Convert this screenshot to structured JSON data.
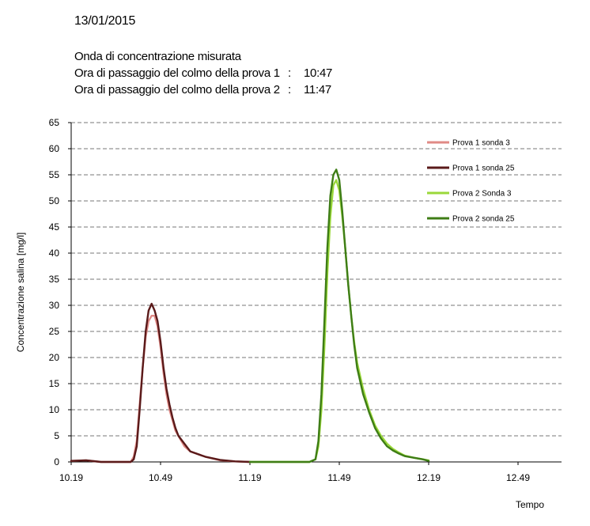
{
  "header": {
    "date": "13/01/2015",
    "subtitle": "Onda di concentrazione misurata",
    "peak1_label": "Ora di passaggio del colmo della prova 1",
    "peak1_sep": ":",
    "peak1_time": "10:47",
    "peak2_label": "Ora di passaggio del colmo della prova 2",
    "peak2_sep": ":",
    "peak2_time": "11:47"
  },
  "chart_data": {
    "type": "line",
    "xlabel": "Tempo",
    "ylabel": "Concentrazione salina [mg/l]",
    "x_ticks": [
      "10.19",
      "10.49",
      "11.19",
      "11.49",
      "12.19",
      "12.49"
    ],
    "y_ticks": [
      0,
      5,
      10,
      15,
      20,
      25,
      30,
      35,
      40,
      45,
      50,
      55,
      60,
      65
    ],
    "xlim": [
      0,
      150
    ],
    "ylim": [
      0,
      65
    ],
    "grid": "horizontal dashed",
    "legend_position": "top-right",
    "series": [
      {
        "name": "Prova 1  sonda 3",
        "color": "#e08a86",
        "x": [
          0,
          5,
          10,
          15,
          20,
          21,
          22,
          23,
          24,
          25,
          26,
          27,
          28,
          29,
          30,
          31,
          32,
          33,
          34,
          35,
          36,
          38,
          40,
          45,
          50,
          55,
          60
        ],
        "y": [
          0.2,
          0.3,
          0,
          0,
          0,
          1,
          4,
          11,
          18,
          24,
          27,
          28,
          28,
          26,
          22,
          17,
          13,
          10,
          8,
          6,
          5,
          3,
          2,
          1,
          0.3,
          0.1,
          0
        ]
      },
      {
        "name": "Prova 1  sonda 25",
        "color": "#5a1a1a",
        "x": [
          0,
          5,
          10,
          15,
          20,
          21,
          22,
          23,
          24,
          25,
          26,
          27,
          28,
          29,
          30,
          31,
          32,
          33,
          34,
          35,
          36,
          38,
          40,
          45,
          50,
          55,
          60
        ],
        "y": [
          0.2,
          0.3,
          0,
          0,
          0,
          0.5,
          3,
          10,
          18,
          25,
          29,
          30.3,
          29,
          27,
          23,
          18,
          14,
          11,
          8.5,
          6.5,
          5,
          3.5,
          2,
          1,
          0.4,
          0.1,
          0
        ]
      },
      {
        "name": "Prova 2 Sonda 3",
        "color": "#9ad83a",
        "x": [
          60,
          70,
          80,
          82,
          83,
          84,
          85,
          86,
          87,
          88,
          89,
          90,
          91,
          92,
          93,
          94,
          95,
          96,
          98,
          100,
          102,
          104,
          106,
          108,
          110,
          112,
          115,
          118,
          120
        ],
        "y": [
          0,
          0,
          0,
          0.5,
          3,
          10,
          22,
          36,
          47,
          53,
          54,
          52,
          47,
          41,
          34,
          28,
          23,
          19,
          14,
          10,
          7,
          5,
          3.5,
          2.5,
          1.8,
          1.2,
          0.8,
          0.5,
          0.3
        ]
      },
      {
        "name": "Prova 2  sonda 25",
        "color": "#3e7d16",
        "x": [
          60,
          70,
          80,
          82,
          83,
          84,
          85,
          86,
          87,
          88,
          89,
          90,
          91,
          92,
          93,
          94,
          95,
          96,
          98,
          100,
          102,
          104,
          106,
          108,
          110,
          112,
          115,
          118,
          120
        ],
        "y": [
          0,
          0,
          0,
          0.5,
          4,
          13,
          27,
          41,
          51,
          55,
          56,
          54,
          48,
          41,
          34,
          28,
          22.5,
          18,
          13,
          9.5,
          6.5,
          4.5,
          3,
          2.2,
          1.6,
          1.1,
          0.8,
          0.5,
          0.2
        ]
      }
    ]
  }
}
